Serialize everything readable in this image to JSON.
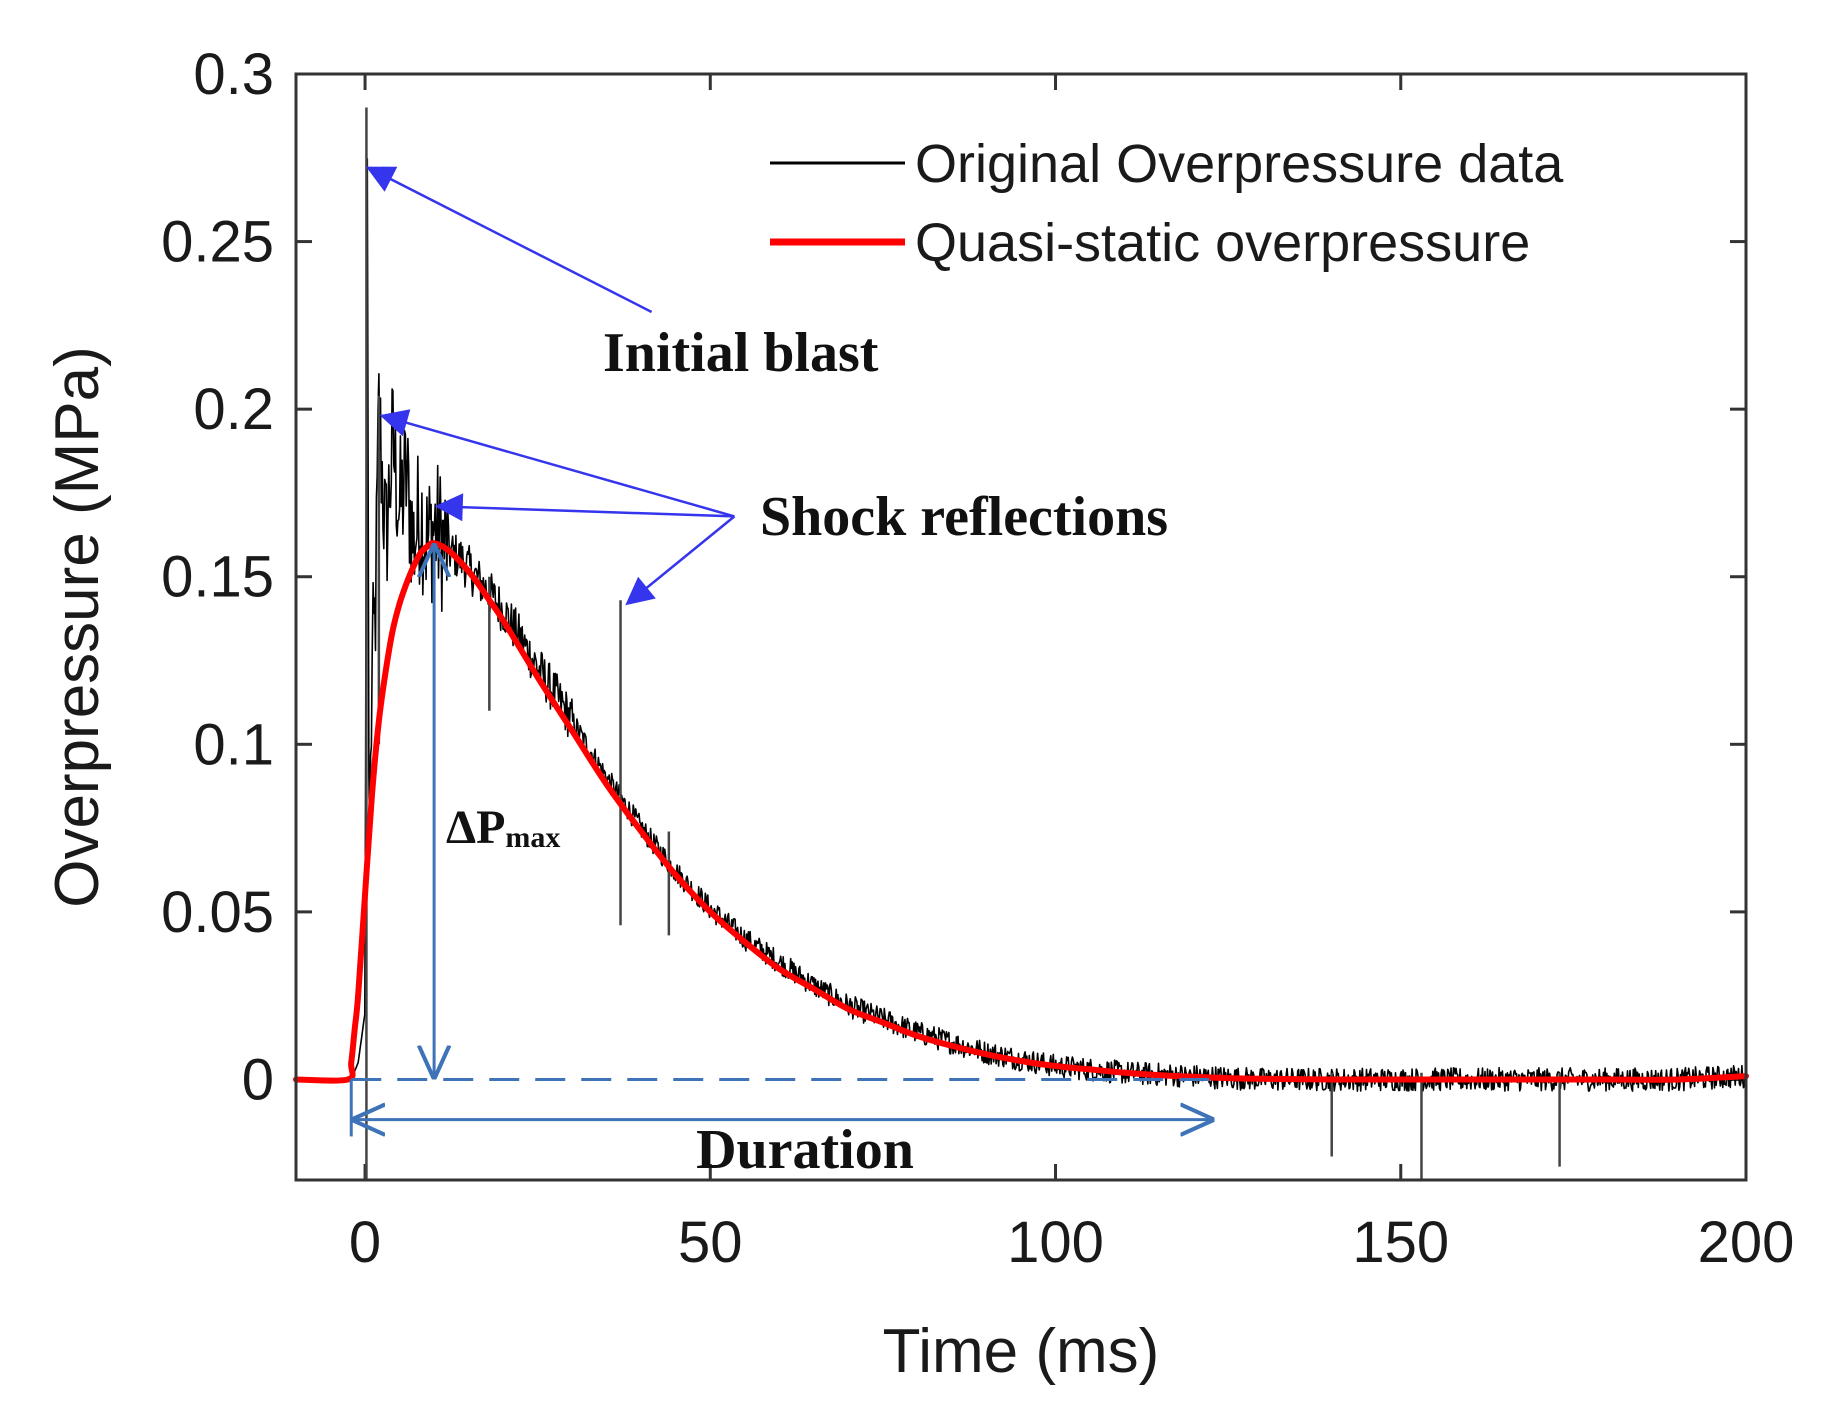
{
  "chart_data": {
    "type": "line",
    "title": "",
    "xlabel": "Time (ms)",
    "ylabel": "Overpressure (MPa)",
    "xlim": [
      -10,
      200
    ],
    "ylim": [
      -0.03,
      0.3
    ],
    "xticks": [
      0,
      50,
      100,
      150,
      200
    ],
    "xtick_labels": [
      "0",
      "50",
      "100",
      "150",
      "200"
    ],
    "yticks": [
      0,
      0.05,
      0.1,
      0.15,
      0.2,
      0.25,
      0.3
    ],
    "ytick_labels": [
      "0",
      "0.05",
      "0.1",
      "0.15",
      "0.2",
      "0.25",
      "0.3"
    ],
    "grid": false,
    "legend_position": "top-right",
    "series": [
      {
        "name": "Original Overpressure data",
        "color": "#000000",
        "x": [
          -10,
          -2,
          -1,
          0,
          0.3,
          0.6,
          1,
          1.5,
          2,
          3,
          4,
          5,
          6,
          7,
          8,
          9,
          10,
          12,
          14,
          16,
          18,
          20,
          25,
          30,
          35,
          40,
          45,
          50,
          55,
          60,
          65,
          70,
          75,
          80,
          85,
          90,
          95,
          100,
          105,
          110,
          115,
          120,
          125,
          130,
          140,
          150,
          160,
          170,
          180,
          190,
          200
        ],
        "y": [
          0.0,
          0.0,
          0.005,
          0.02,
          0.29,
          0.06,
          0.12,
          0.14,
          0.2,
          0.16,
          0.19,
          0.17,
          0.18,
          0.16,
          0.17,
          0.16,
          0.165,
          0.158,
          0.155,
          0.15,
          0.145,
          0.14,
          0.123,
          0.107,
          0.09,
          0.075,
          0.062,
          0.051,
          0.042,
          0.035,
          0.028,
          0.022,
          0.018,
          0.014,
          0.011,
          0.008,
          0.006,
          0.004,
          0.003,
          0.002,
          0.0015,
          0.001,
          0.0005,
          0.0,
          0.0,
          0.0,
          0.0,
          0.0,
          0.0,
          0.0,
          0.001
        ],
        "spikes": [
          {
            "x": 0.2,
            "low": -0.03,
            "high": 0.29
          },
          {
            "x": 2,
            "low": 0.1,
            "high": 0.204
          },
          {
            "x": 18,
            "low": 0.11,
            "high": 0.15
          },
          {
            "x": 37,
            "low": 0.046,
            "high": 0.143
          },
          {
            "x": 44,
            "low": 0.043,
            "high": 0.074
          },
          {
            "x": 140,
            "low": -0.023,
            "high": 0.002
          },
          {
            "x": 153,
            "low": -0.03,
            "high": 0.002
          },
          {
            "x": 173,
            "low": -0.026,
            "high": 0.002
          }
        ]
      },
      {
        "name": "Quasi-static overpressure",
        "color": "#ff0000",
        "x": [
          -10,
          -2.5,
          -2,
          -1.5,
          -1,
          0,
          1,
          2,
          3,
          4,
          5,
          6,
          7,
          8,
          9,
          10,
          12,
          14,
          16,
          18,
          20,
          25,
          30,
          35,
          40,
          45,
          50,
          55,
          60,
          65,
          70,
          75,
          80,
          85,
          90,
          95,
          100,
          105,
          110,
          115,
          120,
          125,
          130,
          140,
          150,
          160,
          170,
          180,
          190,
          200
        ],
        "y": [
          0.0,
          0.0,
          0.005,
          0.015,
          0.025,
          0.055,
          0.085,
          0.107,
          0.122,
          0.134,
          0.142,
          0.148,
          0.153,
          0.157,
          0.159,
          0.16,
          0.158,
          0.154,
          0.149,
          0.143,
          0.137,
          0.12,
          0.104,
          0.088,
          0.074,
          0.061,
          0.05,
          0.041,
          0.033,
          0.027,
          0.021,
          0.017,
          0.013,
          0.01,
          0.0075,
          0.0055,
          0.004,
          0.003,
          0.002,
          0.0013,
          0.0008,
          0.0004,
          0.0002,
          0.0,
          0.0,
          0.0,
          0.0,
          0.0,
          0.0,
          0.001
        ]
      }
    ],
    "annotations": {
      "initial_blast": "Initial blast",
      "shock_reflections": "Shock reflections",
      "delta_p": "ΔP",
      "delta_p_sub": "max",
      "duration": "Duration"
    },
    "annotation_points": {
      "initial_blast_arrow": {
        "from": [
          41.5,
          0.229
        ],
        "to": [
          0.5,
          0.272
        ]
      },
      "shock_arrows": [
        {
          "from": [
            53.5,
            0.168
          ],
          "to": [
            2.5,
            0.198
          ]
        },
        {
          "from": [
            53.5,
            0.168
          ],
          "to": [
            10.5,
            0.171
          ]
        },
        {
          "from": [
            53.5,
            0.168
          ],
          "to": [
            38,
            0.142
          ]
        }
      ],
      "delta_p_arrow": {
        "x": 10,
        "y_top": 0.16,
        "y_bottom": 0
      },
      "zero_line": {
        "x_start": -2,
        "x_end": 123,
        "y": 0
      },
      "duration_arrow": {
        "x_start": -2,
        "x_end": 123,
        "y": -0.012
      },
      "duration_tick": {
        "x": -2,
        "y_top": 0.0,
        "y_bottom": -0.017
      }
    },
    "colors": {
      "annotation_arrow": "#3535ee",
      "measurement_line": "#3f73b8"
    }
  }
}
